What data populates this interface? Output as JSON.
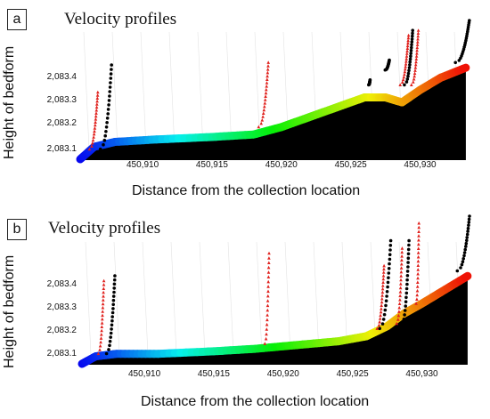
{
  "chart_data": [
    {
      "type": "scatter",
      "panel_label": "a",
      "title": "Velocity profiles",
      "xlabel": "Distance from the collection location",
      "ylabel": "Height of bedform",
      "x_ticks": [
        "450,910",
        "450,915",
        "450,920",
        "450,925",
        "450,930"
      ],
      "y_ticks": [
        "2,083.1",
        "2,083.2",
        "2,083.3",
        "2,083.4"
      ],
      "xlim": [
        450905.5,
        450933.5
      ],
      "ylim": [
        2083.07,
        2083.48
      ],
      "colors": {
        "bedform": "#000000",
        "profile_black": "#000000",
        "profile_red": "#e0201c"
      },
      "bedform_surface": {
        "x": [
          450905.5,
          450906.5,
          450908,
          450911,
          450915,
          450918,
          450920,
          450922,
          450924,
          450926,
          450927.5,
          450928.7,
          450930,
          450931.5,
          450933.3
        ],
        "y": [
          2083.07,
          2083.12,
          2083.14,
          2083.15,
          2083.16,
          2083.17,
          2083.2,
          2083.24,
          2083.28,
          2083.32,
          2083.32,
          2083.3,
          2083.35,
          2083.4,
          2083.44
        ]
      },
      "profiles": [
        {
          "x": 450907.0,
          "base": 2083.1,
          "top": 2083.44,
          "kind": "black",
          "lean": 0.8
        },
        {
          "x": 450906.2,
          "base": 2083.1,
          "top": 2083.33,
          "kind": "red",
          "lean": 0.6
        },
        {
          "x": 450918.4,
          "base": 2083.19,
          "top": 2083.45,
          "kind": "red",
          "lean": 0.7
        },
        {
          "x": 450926.3,
          "base": 2083.36,
          "top": 2083.38,
          "kind": "black",
          "lean": 0.1
        },
        {
          "x": 450927.5,
          "base": 2083.42,
          "top": 2083.46,
          "kind": "black",
          "lean": 0.3
        },
        {
          "x": 450928.9,
          "base": 2083.36,
          "top": 2083.58,
          "kind": "black",
          "lean": 0.6
        },
        {
          "x": 450929.4,
          "base": 2083.36,
          "top": 2083.58,
          "kind": "red",
          "lean": 0.5
        },
        {
          "x": 450928.6,
          "base": 2083.36,
          "top": 2083.56,
          "kind": "red",
          "lean": 0.6
        },
        {
          "x": 450932.6,
          "base": 2083.45,
          "top": 2083.62,
          "kind": "black",
          "lean": 1.0
        }
      ]
    },
    {
      "type": "scatter",
      "panel_label": "b",
      "title": "Velocity profiles",
      "xlabel": "Distance from the collection location",
      "ylabel": "Height of bedform",
      "x_ticks": [
        "450,910",
        "450,915",
        "450,920",
        "450,925",
        "450,930"
      ],
      "y_ticks": [
        "2,083.1",
        "2,083.2",
        "2,083.3",
        "2,083.4"
      ],
      "xlim": [
        450905.5,
        450933.5
      ],
      "ylim": [
        2083.07,
        2083.46
      ],
      "colors": {
        "bedform": "#000000",
        "profile_black": "#000000",
        "profile_red": "#e0201c"
      },
      "bedform_surface": {
        "x": [
          450905.5,
          450906.5,
          450908,
          450911,
          450915,
          450918,
          450920,
          450922,
          450924,
          450926,
          450927.5,
          450928.7,
          450930,
          450931.5,
          450933.3
        ],
        "y": [
          2083.07,
          2083.1,
          2083.11,
          2083.11,
          2083.12,
          2083.13,
          2083.14,
          2083.15,
          2083.16,
          2083.18,
          2083.22,
          2083.27,
          2083.31,
          2083.36,
          2083.42
        ]
      },
      "profiles": [
        {
          "x": 450906.7,
          "base": 2083.1,
          "top": 2083.39,
          "kind": "red",
          "lean": 0.4
        },
        {
          "x": 450907.3,
          "base": 2083.1,
          "top": 2083.41,
          "kind": "black",
          "lean": 0.6
        },
        {
          "x": 450918.7,
          "base": 2083.14,
          "top": 2083.5,
          "kind": "red",
          "lean": 0.3
        },
        {
          "x": 450927.0,
          "base": 2083.2,
          "top": 2083.55,
          "kind": "black",
          "lean": 0.8
        },
        {
          "x": 450926.8,
          "base": 2083.2,
          "top": 2083.45,
          "kind": "red",
          "lean": 0.5
        },
        {
          "x": 450928.6,
          "base": 2083.22,
          "top": 2083.55,
          "kind": "black",
          "lean": 0.5
        },
        {
          "x": 450928.2,
          "base": 2083.22,
          "top": 2083.52,
          "kind": "red",
          "lean": 0.4
        },
        {
          "x": 450929.6,
          "base": 2083.3,
          "top": 2083.62,
          "kind": "red",
          "lean": 0.2
        },
        {
          "x": 450932.6,
          "base": 2083.43,
          "top": 2083.66,
          "kind": "black",
          "lean": 0.9
        }
      ]
    }
  ]
}
